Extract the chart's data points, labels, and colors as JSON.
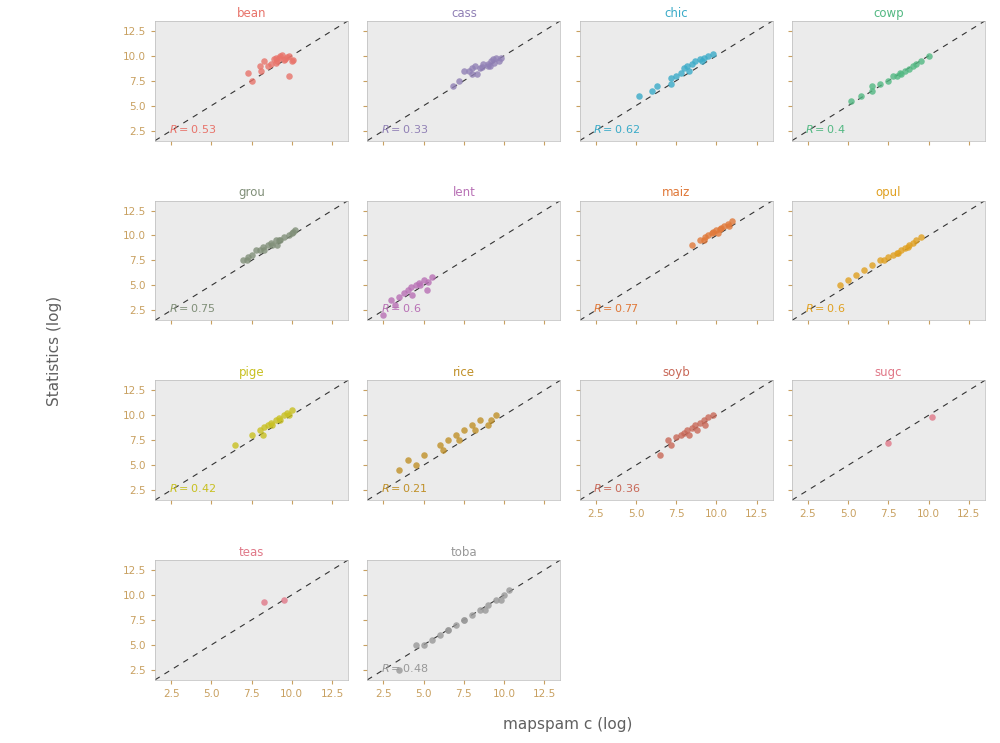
{
  "crops": [
    "bean",
    "cass",
    "chic",
    "cowp",
    "grou",
    "lent",
    "maiz",
    "opul",
    "pige",
    "rice",
    "soyb",
    "sugc",
    "teas",
    "toba"
  ],
  "colors": {
    "bean": "#E8736A",
    "cass": "#9080B5",
    "chic": "#3AABC8",
    "cowp": "#52B882",
    "grou": "#808F78",
    "lent": "#B870B5",
    "maiz": "#E07838",
    "opul": "#E0A020",
    "pige": "#C8C020",
    "rice": "#C09028",
    "soyb": "#C86858",
    "sugc": "#E07888",
    "teas": "#E07888",
    "toba": "#989898"
  },
  "r_values": {
    "bean": "0.53",
    "cass": "0.33",
    "chic": "0.62",
    "cowp": "0.4",
    "grou": "0.75",
    "lent": "0.6",
    "maiz": "0.77",
    "opul": "0.6",
    "pige": "0.42",
    "rice": "0.21",
    "soyb": "0.36",
    "sugc": null,
    "teas": null,
    "toba": "0.48"
  },
  "data": {
    "bean": {
      "x": [
        8.1,
        8.3,
        8.5,
        8.7,
        8.9,
        9.0,
        9.1,
        9.2,
        9.3,
        9.4,
        9.5,
        9.6,
        9.7,
        9.8,
        10.0,
        10.1,
        7.3,
        8.0,
        9.0,
        7.5,
        9.8
      ],
      "y": [
        8.5,
        9.5,
        9.0,
        9.2,
        9.7,
        9.8,
        9.5,
        9.8,
        10.0,
        10.1,
        9.6,
        9.7,
        9.9,
        10.0,
        9.5,
        9.6,
        8.3,
        9.0,
        9.3,
        7.5,
        8.0
      ]
    },
    "cass": {
      "x": [
        7.2,
        7.5,
        8.0,
        8.2,
        8.5,
        8.7,
        9.0,
        9.2,
        9.3,
        9.5,
        9.7,
        9.8,
        7.8,
        8.3,
        8.6,
        9.1,
        9.4,
        6.8,
        8.0,
        9.0
      ],
      "y": [
        7.5,
        8.5,
        8.8,
        9.0,
        8.8,
        9.2,
        9.0,
        9.5,
        9.7,
        9.8,
        9.5,
        9.8,
        8.5,
        8.2,
        8.9,
        9.0,
        9.3,
        7.0,
        8.2,
        9.2
      ]
    },
    "chic": {
      "x": [
        5.2,
        6.3,
        7.2,
        7.5,
        7.8,
        8.0,
        8.2,
        8.5,
        8.7,
        9.0,
        9.2,
        9.5,
        9.8,
        6.0,
        7.2,
        8.3,
        9.1
      ],
      "y": [
        6.0,
        7.0,
        7.8,
        8.0,
        8.3,
        8.8,
        9.0,
        9.2,
        9.5,
        9.7,
        9.8,
        10.0,
        10.2,
        6.5,
        7.2,
        8.5,
        9.5
      ]
    },
    "cowp": {
      "x": [
        5.2,
        5.8,
        6.5,
        7.0,
        7.5,
        8.0,
        8.3,
        8.5,
        8.8,
        9.0,
        9.2,
        9.5,
        10.0,
        6.5,
        7.8,
        8.2
      ],
      "y": [
        5.5,
        6.0,
        6.5,
        7.2,
        7.5,
        8.0,
        8.2,
        8.5,
        8.7,
        9.0,
        9.2,
        9.5,
        10.0,
        7.0,
        8.0,
        8.3
      ]
    },
    "grou": {
      "x": [
        7.0,
        7.3,
        7.5,
        7.8,
        8.0,
        8.2,
        8.5,
        8.7,
        9.0,
        9.2,
        9.5,
        9.8,
        10.0,
        10.2,
        7.2,
        8.3,
        9.1,
        10.1,
        8.8,
        9.3
      ],
      "y": [
        7.5,
        7.8,
        8.0,
        8.5,
        8.5,
        8.8,
        9.0,
        9.2,
        9.5,
        9.5,
        9.8,
        10.0,
        10.2,
        10.5,
        7.5,
        8.5,
        9.0,
        10.3,
        9.0,
        9.5
      ]
    },
    "lent": {
      "x": [
        2.5,
        3.0,
        3.5,
        3.8,
        4.0,
        4.2,
        4.5,
        4.7,
        5.0,
        5.2,
        5.5,
        3.2,
        4.3,
        4.8,
        5.3
      ],
      "y": [
        2.0,
        3.5,
        3.8,
        4.2,
        4.5,
        4.8,
        5.0,
        5.2,
        5.5,
        4.5,
        5.8,
        3.0,
        4.0,
        5.0,
        5.3
      ]
    },
    "maiz": {
      "x": [
        8.5,
        9.0,
        9.3,
        9.5,
        9.7,
        9.8,
        10.0,
        10.2,
        10.3,
        10.5,
        10.7,
        11.0,
        9.2,
        10.1,
        10.8
      ],
      "y": [
        9.0,
        9.5,
        9.8,
        10.0,
        10.2,
        10.3,
        10.5,
        10.7,
        10.8,
        11.0,
        11.2,
        11.5,
        9.5,
        10.2,
        11.0
      ]
    },
    "opul": {
      "x": [
        4.5,
        5.5,
        6.5,
        7.0,
        7.5,
        7.8,
        8.0,
        8.3,
        8.5,
        8.8,
        9.0,
        9.2,
        5.0,
        6.0,
        7.2,
        8.1,
        8.7,
        9.5
      ],
      "y": [
        5.0,
        6.0,
        7.0,
        7.5,
        7.8,
        8.0,
        8.2,
        8.5,
        8.7,
        9.0,
        9.2,
        9.5,
        5.5,
        6.5,
        7.5,
        8.2,
        8.8,
        9.8
      ]
    },
    "pige": {
      "x": [
        6.5,
        7.5,
        8.0,
        8.3,
        8.5,
        8.7,
        9.0,
        9.2,
        9.5,
        9.7,
        10.0,
        8.2,
        8.8,
        9.3,
        9.8
      ],
      "y": [
        7.0,
        8.0,
        8.5,
        8.8,
        9.0,
        9.2,
        9.5,
        9.7,
        10.0,
        10.2,
        10.5,
        8.0,
        9.0,
        9.5,
        10.0
      ]
    },
    "rice": {
      "x": [
        3.5,
        4.0,
        5.0,
        6.0,
        6.5,
        7.0,
        7.5,
        8.0,
        8.5,
        9.0,
        9.5,
        4.5,
        6.2,
        7.2,
        8.2,
        9.2
      ],
      "y": [
        4.5,
        5.5,
        6.0,
        7.0,
        7.5,
        8.0,
        8.5,
        9.0,
        9.5,
        9.0,
        10.0,
        5.0,
        6.5,
        7.5,
        8.5,
        9.5
      ]
    },
    "soyb": {
      "x": [
        6.5,
        7.0,
        7.5,
        7.8,
        8.0,
        8.2,
        8.5,
        8.7,
        9.0,
        9.2,
        9.5,
        9.8,
        7.2,
        8.3,
        8.8,
        9.3
      ],
      "y": [
        6.0,
        7.5,
        7.8,
        8.0,
        8.2,
        8.5,
        8.7,
        9.0,
        9.2,
        9.5,
        9.8,
        10.0,
        7.0,
        8.0,
        8.5,
        9.0
      ]
    },
    "sugc": {
      "x": [
        7.5,
        10.2
      ],
      "y": [
        7.2,
        9.8
      ]
    },
    "teas": {
      "x": [
        8.3,
        9.5
      ],
      "y": [
        9.3,
        9.5
      ]
    },
    "toba": {
      "x": [
        3.5,
        4.5,
        5.5,
        6.0,
        6.5,
        7.0,
        7.5,
        8.0,
        8.5,
        9.0,
        9.5,
        10.0,
        10.3,
        5.0,
        6.5,
        7.5,
        8.8,
        9.8
      ],
      "y": [
        2.5,
        5.0,
        5.5,
        6.0,
        6.5,
        7.0,
        7.5,
        8.0,
        8.5,
        9.0,
        9.5,
        10.0,
        10.5,
        5.0,
        6.5,
        7.5,
        8.5,
        9.5
      ]
    }
  },
  "xlim": [
    1.5,
    13.5
  ],
  "ylim": [
    1.5,
    13.5
  ],
  "xticks": [
    2.5,
    5.0,
    7.5,
    10.0,
    12.5
  ],
  "yticks": [
    2.5,
    5.0,
    7.5,
    10.0,
    12.5
  ],
  "xlabel": "mapspam c (log)",
  "ylabel": "Statistics (log)",
  "bg_color": "#EBEBEB",
  "fig_bg": "#FFFFFF",
  "tick_color": "#C8A060",
  "label_color": "#606060"
}
